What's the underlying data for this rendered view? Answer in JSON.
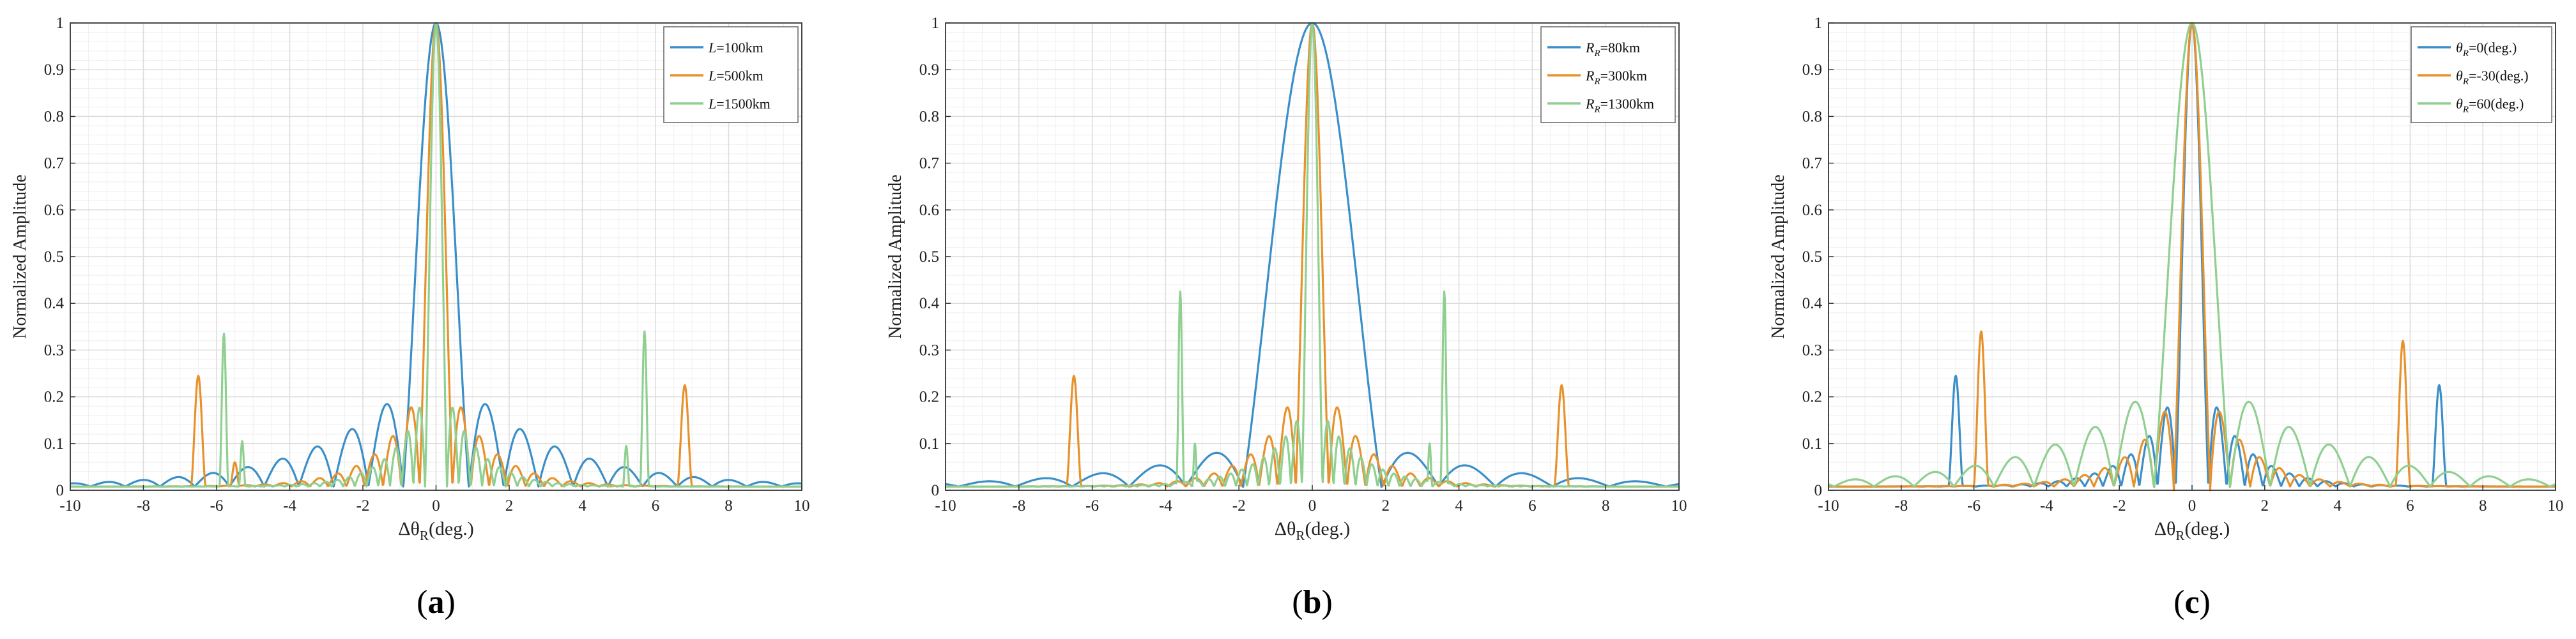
{
  "colors": {
    "blue": "#3a8fc9",
    "orange": "#e8912a",
    "green": "#8fcf8f",
    "axis": "#333333",
    "grid_major": "#dcdcdc",
    "grid_minor": "#efefef"
  },
  "chart_data": [
    {
      "type": "line",
      "panel_label": "(a)",
      "xlabel": "Δθ_R(deg.)",
      "ylabel": "Normalized Amplitude",
      "xlim": [
        -10,
        10
      ],
      "ylim": [
        0,
        1
      ],
      "xticks": [
        -10,
        -8,
        -6,
        -4,
        -2,
        0,
        2,
        4,
        6,
        8,
        10
      ],
      "yticks": [
        0,
        0.1,
        0.2,
        0.3,
        0.4,
        0.5,
        0.6,
        0.7,
        0.8,
        0.9,
        1
      ],
      "grid": true,
      "legend_position": "top-right",
      "series": [
        {
          "name": "L=100km",
          "legend_var": "L",
          "legend_sub": "",
          "legend_rest": "=100km",
          "color": "blue",
          "mainlobe_halfwidth": 0.9,
          "sidelobe_spacing": 0.95,
          "sidelobe_peak": 0.21,
          "sidelobe_decay": 0.38,
          "bumps": []
        },
        {
          "name": "L=500km",
          "legend_var": "L",
          "legend_sub": "",
          "legend_rest": "=500km",
          "color": "orange",
          "mainlobe_halfwidth": 0.45,
          "sidelobe_spacing": 0.5,
          "sidelobe_peak": 0.21,
          "sidelobe_decay": 0.9,
          "bumps": [
            {
              "x": -6.5,
              "y": 0.245,
              "w": 0.22
            },
            {
              "x": 6.8,
              "y": 0.225,
              "w": 0.22
            },
            {
              "x": -5.5,
              "y": 0.06,
              "w": 0.15
            }
          ]
        },
        {
          "name": "L=1500km",
          "legend_var": "L",
          "legend_sub": "",
          "legend_rest": "=1500km",
          "color": "green",
          "mainlobe_halfwidth": 0.3,
          "sidelobe_spacing": 0.32,
          "sidelobe_peak": 0.2,
          "sidelobe_decay": 1.1,
          "bumps": [
            {
              "x": -5.8,
              "y": 0.335,
              "w": 0.13
            },
            {
              "x": 5.7,
              "y": 0.34,
              "w": 0.13
            },
            {
              "x": -5.3,
              "y": 0.105,
              "w": 0.1
            },
            {
              "x": 5.2,
              "y": 0.095,
              "w": 0.1
            }
          ]
        }
      ]
    },
    {
      "type": "line",
      "panel_label": "(b)",
      "xlabel": "Δθ_R(deg.)",
      "ylabel": "Normalized Amplitude",
      "xlim": [
        -10,
        10
      ],
      "ylim": [
        0,
        1
      ],
      "xticks": [
        -10,
        -8,
        -6,
        -4,
        -2,
        0,
        2,
        4,
        6,
        8,
        10
      ],
      "yticks": [
        0,
        0.1,
        0.2,
        0.3,
        0.4,
        0.5,
        0.6,
        0.7,
        0.8,
        0.9,
        1
      ],
      "grid": true,
      "legend_position": "top-right",
      "series": [
        {
          "name": "R_R=80km",
          "legend_var": "R",
          "legend_sub": "R",
          "legend_rest": "=80km",
          "color": "blue",
          "mainlobe_halfwidth": 1.9,
          "sidelobe_spacing": 1.55,
          "sidelobe_peak": 0.09,
          "sidelobe_decay": 0.3,
          "bumps": []
        },
        {
          "name": "R_R=300km",
          "legend_var": "R",
          "legend_sub": "R",
          "legend_rest": "=300km",
          "color": "orange",
          "mainlobe_halfwidth": 0.45,
          "sidelobe_spacing": 0.5,
          "sidelobe_peak": 0.21,
          "sidelobe_decay": 0.9,
          "bumps": [
            {
              "x": -6.5,
              "y": 0.245,
              "w": 0.22
            },
            {
              "x": 6.8,
              "y": 0.225,
              "w": 0.22
            }
          ]
        },
        {
          "name": "R_R=1300km",
          "legend_var": "R",
          "legend_sub": "R",
          "legend_rest": "=1300km",
          "color": "green",
          "mainlobe_halfwidth": 0.28,
          "sidelobe_spacing": 0.3,
          "sidelobe_peak": 0.16,
          "sidelobe_decay": 0.9,
          "bumps": [
            {
              "x": -3.6,
              "y": 0.425,
              "w": 0.11
            },
            {
              "x": 3.6,
              "y": 0.425,
              "w": 0.11
            },
            {
              "x": -3.2,
              "y": 0.1,
              "w": 0.08
            },
            {
              "x": 3.2,
              "y": 0.1,
              "w": 0.08
            }
          ]
        }
      ]
    },
    {
      "type": "line",
      "panel_label": "(c)",
      "xlabel": "Δθ_R(deg.)",
      "ylabel": "Normalized Amplitude",
      "xlim": [
        -10,
        10
      ],
      "ylim": [
        0,
        1
      ],
      "xticks": [
        -10,
        -8,
        -6,
        -4,
        -2,
        0,
        2,
        4,
        6,
        8,
        10
      ],
      "yticks": [
        0,
        0.1,
        0.2,
        0.3,
        0.4,
        0.5,
        0.6,
        0.7,
        0.8,
        0.9,
        1
      ],
      "grid": true,
      "legend_position": "top-right",
      "series": [
        {
          "name": "θ_R=0(deg.)",
          "legend_var": "θ",
          "legend_sub": "R",
          "legend_rest": "=0(deg.)",
          "color": "blue",
          "mainlobe_halfwidth": 0.45,
          "sidelobe_spacing": 0.5,
          "sidelobe_peak": 0.21,
          "sidelobe_decay": 0.9,
          "bumps": [
            {
              "x": -6.5,
              "y": 0.245,
              "w": 0.22
            },
            {
              "x": 6.8,
              "y": 0.225,
              "w": 0.22
            }
          ]
        },
        {
          "name": "θ_R=-30(deg.)",
          "legend_var": "θ",
          "legend_sub": "R",
          "legend_rest": "=-30(deg.)",
          "color": "orange",
          "mainlobe_halfwidth": 0.5,
          "sidelobe_spacing": 0.55,
          "sidelobe_peak": 0.2,
          "sidelobe_decay": 0.85,
          "bumps": [
            {
              "x": -5.8,
              "y": 0.34,
              "w": 0.22
            },
            {
              "x": 5.8,
              "y": 0.32,
              "w": 0.22
            }
          ]
        },
        {
          "name": "θ_R=60(deg.)",
          "legend_var": "θ",
          "legend_sub": "R",
          "legend_rest": "=60(deg.)",
          "color": "green",
          "mainlobe_halfwidth": 1.05,
          "sidelobe_spacing": 1.1,
          "sidelobe_peak": 0.215,
          "sidelobe_decay": 0.32,
          "bumps": []
        }
      ]
    }
  ]
}
